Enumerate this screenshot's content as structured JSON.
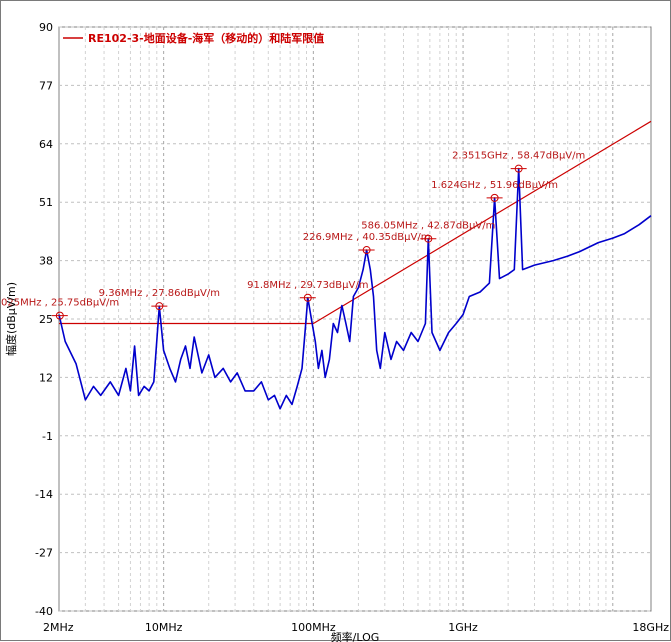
{
  "chart_data": {
    "type": "line",
    "title": "",
    "xlabel": "频率/LOG",
    "ylabel": "幅度(dBμV/m)",
    "x_scale": "log",
    "xlim_hz": [
      2000000,
      18000000000
    ],
    "ylim": [
      -40,
      90
    ],
    "y_ticks": [
      "90",
      "77",
      "64",
      "51",
      "38",
      "25",
      "12",
      "-1",
      "-14",
      "-27",
      "-40"
    ],
    "x_ticks": [
      {
        "label": "2MHz",
        "hz": 2000000
      },
      {
        "label": "10MHz",
        "hz": 10000000
      },
      {
        "label": "100MHz",
        "hz": 100000000
      },
      {
        "label": "1GHz",
        "hz": 1000000000
      },
      {
        "label": "18GHz",
        "hz": 18000000000
      }
    ],
    "grid": true,
    "legend": {
      "position": "top-left",
      "entries": [
        {
          "name": "RE102-3-地面设备-海军（移动的）和陆军限值",
          "color": "#cc0000"
        }
      ]
    },
    "series": [
      {
        "name": "RE102-3-地面设备-海军（移动的）和陆军限值",
        "color": "#cc0000",
        "points": [
          [
            2000000,
            24
          ],
          [
            100000000,
            24
          ],
          [
            18000000000,
            69
          ]
        ]
      },
      {
        "name": "",
        "color": "#0000cc",
        "points": [
          [
            2000000,
            26
          ],
          [
            2200000,
            20
          ],
          [
            2600000,
            15
          ],
          [
            3000000,
            7
          ],
          [
            3400000,
            10
          ],
          [
            3800000,
            8
          ],
          [
            4400000,
            11
          ],
          [
            5000000,
            8
          ],
          [
            5600000,
            14
          ],
          [
            6000000,
            9
          ],
          [
            6400000,
            19
          ],
          [
            6800000,
            8
          ],
          [
            7400000,
            10
          ],
          [
            8000000,
            9
          ],
          [
            8600000,
            11
          ],
          [
            9360000,
            27.86
          ],
          [
            10000000,
            18
          ],
          [
            11000000,
            14
          ],
          [
            12000000,
            11
          ],
          [
            13000000,
            16
          ],
          [
            14000000,
            19
          ],
          [
            15000000,
            14
          ],
          [
            16000000,
            21
          ],
          [
            18000000,
            13
          ],
          [
            20000000,
            17
          ],
          [
            22000000,
            12
          ],
          [
            25000000,
            14
          ],
          [
            28000000,
            11
          ],
          [
            31000000,
            13
          ],
          [
            35000000,
            9
          ],
          [
            40000000,
            9
          ],
          [
            45000000,
            11
          ],
          [
            50000000,
            7
          ],
          [
            55000000,
            8
          ],
          [
            60000000,
            5
          ],
          [
            66000000,
            8
          ],
          [
            72000000,
            6
          ],
          [
            78000000,
            10
          ],
          [
            84000000,
            14
          ],
          [
            88000000,
            22
          ],
          [
            91800000,
            29.73
          ],
          [
            97000000,
            25
          ],
          [
            103000000,
            20
          ],
          [
            108000000,
            14
          ],
          [
            114000000,
            18
          ],
          [
            120000000,
            12
          ],
          [
            128000000,
            16
          ],
          [
            136000000,
            24
          ],
          [
            145000000,
            22
          ],
          [
            155000000,
            28
          ],
          [
            165000000,
            24
          ],
          [
            175000000,
            20
          ],
          [
            185000000,
            30
          ],
          [
            200000000,
            32
          ],
          [
            215000000,
            36
          ],
          [
            226900000,
            40.35
          ],
          [
            240000000,
            36
          ],
          [
            252000000,
            30
          ],
          [
            265000000,
            18
          ],
          [
            280000000,
            14
          ],
          [
            300000000,
            22
          ],
          [
            330000000,
            16
          ],
          [
            360000000,
            20
          ],
          [
            400000000,
            18
          ],
          [
            450000000,
            22
          ],
          [
            500000000,
            20
          ],
          [
            560000000,
            24
          ],
          [
            586050000,
            42.87
          ],
          [
            620000000,
            22
          ],
          [
            700000000,
            18
          ],
          [
            800000000,
            22
          ],
          [
            900000000,
            24
          ],
          [
            1000000000,
            26
          ],
          [
            1100000000,
            30
          ],
          [
            1300000000,
            31
          ],
          [
            1500000000,
            33
          ],
          [
            1624000000,
            51.96
          ],
          [
            1750000000,
            34
          ],
          [
            2000000000,
            35
          ],
          [
            2200000000,
            36
          ],
          [
            2351500000,
            58.47
          ],
          [
            2500000000,
            36
          ],
          [
            3000000000,
            37
          ],
          [
            4000000000,
            38
          ],
          [
            5000000000,
            39
          ],
          [
            6000000000,
            40
          ],
          [
            8000000000,
            42
          ],
          [
            10000000000,
            43
          ],
          [
            12000000000,
            44
          ],
          [
            15000000000,
            46
          ],
          [
            18000000000,
            48
          ]
        ]
      }
    ],
    "markers": [
      {
        "freq_hz": 2025000,
        "value": 25.75,
        "label": "025MHz , 25.75dBμV/m"
      },
      {
        "freq_hz": 9360000,
        "value": 27.86,
        "label": "9.36MHz , 27.86dBμV/m"
      },
      {
        "freq_hz": 91800000,
        "value": 29.73,
        "label": "91.8MHz , 29.73dBμV/m"
      },
      {
        "freq_hz": 226900000,
        "value": 40.35,
        "label": "226.9MHz , 40.35dBμV/m"
      },
      {
        "freq_hz": 586050000,
        "value": 42.87,
        "label": "586.05MHz , 42.87dBμV/m"
      },
      {
        "freq_hz": 1624000000,
        "value": 51.96,
        "label": "1.624GHz , 51.96dBμV/m"
      },
      {
        "freq_hz": 2351500000,
        "value": 58.47,
        "label": "2.3515GHz , 58.47dBμV/m"
      }
    ]
  }
}
